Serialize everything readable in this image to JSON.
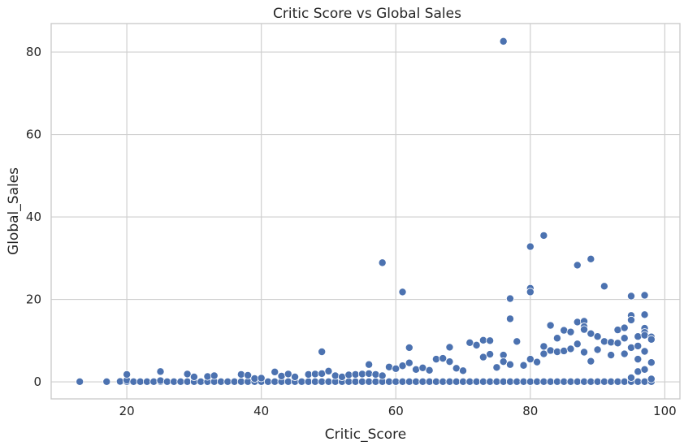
{
  "chart_data": {
    "type": "scatter",
    "title": "Critic Score vs Global Sales",
    "xlabel": "Critic_Score",
    "ylabel": "Global_Sales",
    "xlim": [
      8.75,
      102.25
    ],
    "ylim": [
      -4.13,
      86.91
    ],
    "xticks": [
      20,
      40,
      60,
      80,
      100
    ],
    "yticks": [
      0,
      20,
      40,
      60,
      80
    ],
    "grid": true,
    "color": "#4c72b0",
    "points": [
      [
        13,
        0.05
      ],
      [
        17,
        0.05
      ],
      [
        19,
        0.1
      ],
      [
        20,
        0.05
      ],
      [
        20,
        0.4
      ],
      [
        20,
        1.8
      ],
      [
        21,
        0.05
      ],
      [
        22,
        0.05
      ],
      [
        23,
        0.05
      ],
      [
        24,
        0.05
      ],
      [
        25,
        0.05
      ],
      [
        25,
        0.3
      ],
      [
        25,
        2.5
      ],
      [
        26,
        0.05
      ],
      [
        27,
        0.05
      ],
      [
        28,
        0.05
      ],
      [
        29,
        0.05
      ],
      [
        29,
        1.9
      ],
      [
        30,
        0.05
      ],
      [
        30,
        1.2
      ],
      [
        31,
        0.05
      ],
      [
        32,
        0.05
      ],
      [
        32,
        1.3
      ],
      [
        33,
        0.05
      ],
      [
        33,
        1.5
      ],
      [
        34,
        0.05
      ],
      [
        35,
        0.05
      ],
      [
        36,
        0.05
      ],
      [
        37,
        0.05
      ],
      [
        37,
        1.8
      ],
      [
        38,
        0.05
      ],
      [
        38,
        1.6
      ],
      [
        39,
        0.05
      ],
      [
        39,
        0.8
      ],
      [
        40,
        0.05
      ],
      [
        40,
        0.9
      ],
      [
        41,
        0.05
      ],
      [
        42,
        0.05
      ],
      [
        42,
        2.4
      ],
      [
        43,
        0.05
      ],
      [
        43,
        1.4
      ],
      [
        44,
        0.05
      ],
      [
        44,
        1.9
      ],
      [
        45,
        0.05
      ],
      [
        45,
        1.2
      ],
      [
        46,
        0.05
      ],
      [
        47,
        0.05
      ],
      [
        47,
        1.8
      ],
      [
        48,
        0.05
      ],
      [
        48,
        1.9
      ],
      [
        49,
        0.05
      ],
      [
        49,
        7.3
      ],
      [
        49,
        2.0
      ],
      [
        50,
        0.05
      ],
      [
        50,
        2.6
      ],
      [
        51,
        0.05
      ],
      [
        51,
        1.5
      ],
      [
        52,
        0.05
      ],
      [
        52,
        1.2
      ],
      [
        53,
        0.05
      ],
      [
        53,
        1.7
      ],
      [
        54,
        0.05
      ],
      [
        54,
        1.8
      ],
      [
        55,
        0.05
      ],
      [
        55,
        1.9
      ],
      [
        56,
        0.05
      ],
      [
        56,
        4.2
      ],
      [
        56,
        2.0
      ],
      [
        57,
        0.05
      ],
      [
        57,
        1.8
      ],
      [
        58,
        0.05
      ],
      [
        58,
        28.9
      ],
      [
        58,
        1.5
      ],
      [
        59,
        0.05
      ],
      [
        59,
        3.6
      ],
      [
        60,
        0.05
      ],
      [
        60,
        3.2
      ],
      [
        61,
        0.05
      ],
      [
        61,
        21.8
      ],
      [
        61,
        3.9
      ],
      [
        62,
        0.05
      ],
      [
        62,
        8.3
      ],
      [
        62,
        4.6
      ],
      [
        63,
        0.05
      ],
      [
        63,
        3.0
      ],
      [
        64,
        0.05
      ],
      [
        64,
        3.4
      ],
      [
        65,
        0.05
      ],
      [
        65,
        2.8
      ],
      [
        66,
        0.05
      ],
      [
        66,
        5.5
      ],
      [
        67,
        0.05
      ],
      [
        67,
        5.7
      ],
      [
        68,
        0.05
      ],
      [
        68,
        8.4
      ],
      [
        68,
        4.9
      ],
      [
        69,
        0.05
      ],
      [
        69,
        3.3
      ],
      [
        70,
        0.05
      ],
      [
        70,
        2.7
      ],
      [
        71,
        0.05
      ],
      [
        71,
        9.5
      ],
      [
        72,
        0.05
      ],
      [
        72,
        8.9
      ],
      [
        73,
        0.05
      ],
      [
        73,
        10.1
      ],
      [
        73,
        6.0
      ],
      [
        74,
        0.05
      ],
      [
        74,
        10.0
      ],
      [
        74,
        6.7
      ],
      [
        75,
        0.05
      ],
      [
        75,
        3.5
      ],
      [
        76,
        0.05
      ],
      [
        76,
        82.6
      ],
      [
        76,
        6.5
      ],
      [
        76,
        4.9
      ],
      [
        77,
        0.05
      ],
      [
        77,
        20.2
      ],
      [
        77,
        15.3
      ],
      [
        77,
        4.2
      ],
      [
        78,
        0.05
      ],
      [
        78,
        9.8
      ],
      [
        79,
        0.05
      ],
      [
        79,
        4.0
      ],
      [
        80,
        0.05
      ],
      [
        80,
        32.8
      ],
      [
        80,
        22.7
      ],
      [
        80,
        21.8
      ],
      [
        80,
        5.5
      ],
      [
        81,
        0.05
      ],
      [
        81,
        4.8
      ],
      [
        82,
        0.05
      ],
      [
        82,
        35.5
      ],
      [
        82,
        8.6
      ],
      [
        82,
        6.8
      ],
      [
        83,
        0.05
      ],
      [
        83,
        13.7
      ],
      [
        83,
        7.6
      ],
      [
        84,
        0.05
      ],
      [
        84,
        10.6
      ],
      [
        84,
        7.3
      ],
      [
        85,
        0.05
      ],
      [
        85,
        12.5
      ],
      [
        85,
        7.5
      ],
      [
        86,
        0.05
      ],
      [
        86,
        12.1
      ],
      [
        86,
        8.0
      ],
      [
        87,
        0.05
      ],
      [
        87,
        28.3
      ],
      [
        87,
        14.5
      ],
      [
        87,
        9.2
      ],
      [
        88,
        0.05
      ],
      [
        88,
        14.7
      ],
      [
        88,
        13.4
      ],
      [
        88,
        12.7
      ],
      [
        88,
        7.2
      ],
      [
        89,
        0.05
      ],
      [
        89,
        29.8
      ],
      [
        89,
        11.7
      ],
      [
        89,
        5.0
      ],
      [
        90,
        0.05
      ],
      [
        90,
        11.0
      ],
      [
        90,
        7.8
      ],
      [
        91,
        0.05
      ],
      [
        91,
        23.2
      ],
      [
        91,
        9.8
      ],
      [
        92,
        0.05
      ],
      [
        92,
        9.6
      ],
      [
        92,
        6.5
      ],
      [
        93,
        0.05
      ],
      [
        93,
        12.6
      ],
      [
        93,
        9.4
      ],
      [
        94,
        0.05
      ],
      [
        94,
        13.1
      ],
      [
        94,
        10.6
      ],
      [
        94,
        6.8
      ],
      [
        95,
        0.05
      ],
      [
        95,
        20.8
      ],
      [
        95,
        16.1
      ],
      [
        95,
        15.0
      ],
      [
        95,
        8.3
      ],
      [
        95,
        1.0
      ],
      [
        96,
        0.05
      ],
      [
        96,
        11.0
      ],
      [
        96,
        8.7
      ],
      [
        96,
        5.5
      ],
      [
        96,
        2.5
      ],
      [
        97,
        0.05
      ],
      [
        97,
        21.0
      ],
      [
        97,
        16.3
      ],
      [
        97,
        13.0
      ],
      [
        97,
        12.0
      ],
      [
        97,
        11.3
      ],
      [
        97,
        7.4
      ],
      [
        97,
        3.0
      ],
      [
        98,
        0.05
      ],
      [
        98,
        10.9
      ],
      [
        98,
        10.3
      ],
      [
        98,
        4.7
      ],
      [
        98,
        0.7
      ]
    ]
  }
}
